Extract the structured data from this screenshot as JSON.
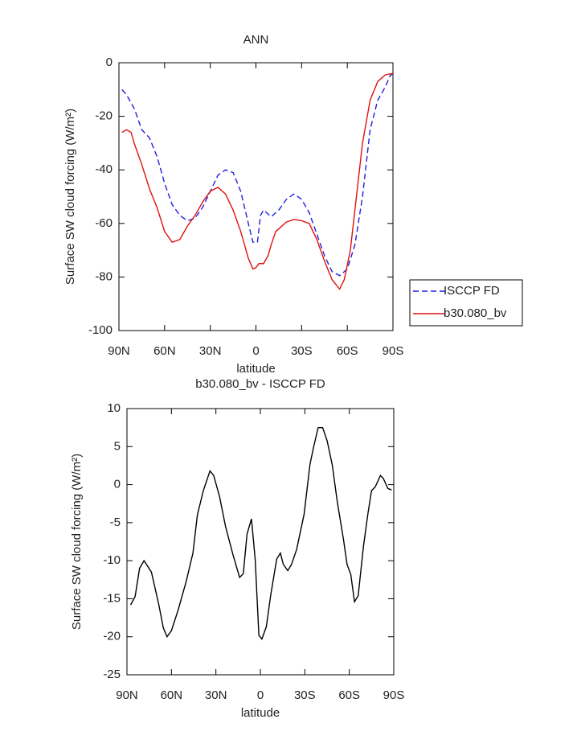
{
  "chart_data": [
    {
      "type": "line",
      "title": "ANN",
      "xlabel": "latitude",
      "ylabel": "Surface SW cloud forcing (W/m²)",
      "xlim": [
        90,
        -90
      ],
      "ylim": [
        -100,
        0
      ],
      "xticks": [
        {
          "value": 90,
          "label": "90N"
        },
        {
          "value": 60,
          "label": "60N"
        },
        {
          "value": 30,
          "label": "30N"
        },
        0,
        {
          "value": -30,
          "label": "30S"
        },
        {
          "value": -60,
          "label": "60S"
        },
        {
          "value": -90,
          "label": "90S"
        }
      ],
      "yticks": [
        -100,
        -80,
        -60,
        -40,
        -20,
        0
      ],
      "legend": "right",
      "series": [
        {
          "name": "ISCCP FD",
          "color": "#1f1fe0",
          "line_style": "dashed",
          "x": [
            88,
            85,
            80,
            75,
            70,
            65,
            60,
            55,
            50,
            45,
            40,
            35,
            30,
            25,
            20,
            15,
            10,
            5,
            2,
            -1,
            -3,
            -5,
            -10,
            -15,
            -20,
            -25,
            -30,
            -35,
            -40,
            -45,
            -50,
            -55,
            -60,
            -65,
            -70,
            -75,
            -80,
            -85,
            -88,
            -90
          ],
          "values": [
            -10,
            -12,
            -17,
            -25,
            -28,
            -35,
            -45,
            -53,
            -57,
            -59,
            -58,
            -54,
            -48,
            -42,
            -40,
            -41,
            -48,
            -60,
            -67,
            -67,
            -57,
            -55,
            -57.5,
            -55,
            -51,
            -49,
            -51,
            -56,
            -64,
            -72,
            -78,
            -79.5,
            -77,
            -68,
            -50,
            -25,
            -14,
            -9,
            -5,
            -4
          ]
        },
        {
          "name": "b30.080_bv",
          "color": "#e01010",
          "line_style": "solid",
          "x": [
            88,
            85,
            82,
            80,
            75,
            70,
            65,
            60,
            55,
            50,
            45,
            40,
            35,
            30,
            25,
            20,
            15,
            10,
            5,
            2,
            0,
            -2,
            -5,
            -8,
            -10,
            -13,
            -15,
            -20,
            -25,
            -30,
            -35,
            -40,
            -45,
            -50,
            -55,
            -58,
            -62,
            -65,
            -70,
            -75,
            -80,
            -85,
            -90
          ],
          "values": [
            -26,
            -25,
            -26,
            -30,
            -38,
            -47,
            -54,
            -63,
            -67,
            -66,
            -61,
            -57,
            -52,
            -48,
            -46.5,
            -49,
            -55,
            -63,
            -73,
            -77,
            -76.5,
            -75,
            -75,
            -72,
            -68,
            -63,
            -62,
            -59.5,
            -58.5,
            -59,
            -60,
            -66,
            -74,
            -81,
            -84.5,
            -81,
            -70,
            -55,
            -30,
            -14,
            -7,
            -4.5,
            -4
          ]
        }
      ]
    },
    {
      "type": "line",
      "title": "b30.080_bv - ISCCP FD",
      "xlabel": "latitude",
      "ylabel": "Surface SW cloud forcing (W/m²)",
      "xlim": [
        90,
        -90
      ],
      "ylim": [
        -25,
        10
      ],
      "xticks": [
        {
          "value": 90,
          "label": "90N"
        },
        {
          "value": 60,
          "label": "60N"
        },
        {
          "value": 30,
          "label": "30N"
        },
        0,
        {
          "value": -30,
          "label": "30S"
        },
        {
          "value": -60,
          "label": "60S"
        },
        {
          "value": -90,
          "label": "90S"
        }
      ],
      "yticks": [
        -25,
        -20,
        -15,
        -10,
        -5,
        0,
        5,
        10
      ],
      "color": "#000000",
      "x": [
        87.5,
        84.5,
        81.5,
        78.5,
        73.5,
        68.5,
        65.5,
        63,
        60,
        55.5,
        50,
        45.5,
        42.5,
        38.5,
        34,
        31.5,
        27.5,
        23.5,
        18.5,
        14,
        11.5,
        9,
        6,
        3.5,
        1,
        -1,
        -4,
        -7,
        -11,
        -13.5,
        -15.5,
        -18.5,
        -21,
        -24.5,
        -29.5,
        -33.5,
        -36,
        -39,
        -42,
        -45,
        -48.5,
        -52,
        -56,
        -58.5,
        -61,
        -63.5,
        -66,
        -69.5,
        -72.5,
        -75,
        -77.5,
        -81,
        -83,
        -86,
        -88.5
      ],
      "values": [
        -15.8,
        -14.7,
        -11,
        -10,
        -11.5,
        -15.8,
        -18.8,
        -20,
        -19.2,
        -16.5,
        -12.7,
        -9,
        -4,
        -0.8,
        1.8,
        1.2,
        -1.6,
        -5.5,
        -9.2,
        -12.2,
        -11.7,
        -6.5,
        -4.5,
        -9.8,
        -19.8,
        -20.3,
        -18.7,
        -14.5,
        -9.8,
        -9,
        -10.5,
        -11.3,
        -10.5,
        -8.5,
        -3.9,
        2.7,
        5,
        7.5,
        7.5,
        5.8,
        2.6,
        -2.4,
        -7.1,
        -10.5,
        -11.8,
        -15.4,
        -14.6,
        -8.2,
        -3.9,
        -0.8,
        -0.3,
        1.2,
        0.8,
        -0.5,
        -0.7
      ]
    }
  ]
}
